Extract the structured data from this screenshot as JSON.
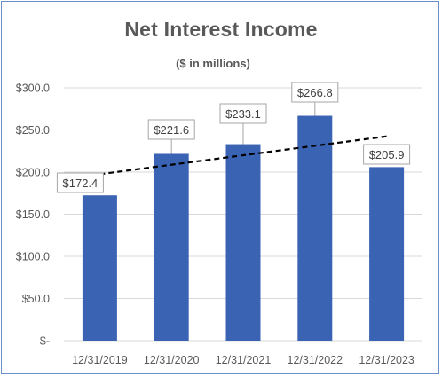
{
  "chart_data": {
    "type": "bar",
    "title": "Net Interest Income",
    "subtitle": "($ in millions)",
    "xlabel": "",
    "ylabel": "",
    "categories": [
      "12/31/2019",
      "12/31/2020",
      "12/31/2021",
      "12/31/2022",
      "12/31/2023"
    ],
    "values": [
      172.4,
      221.6,
      233.1,
      266.8,
      205.9
    ],
    "data_labels": [
      "$172.4",
      "$221.6",
      "$233.1",
      "$266.8",
      "$205.9"
    ],
    "y_ticks": [
      0,
      50,
      100,
      150,
      200,
      250,
      300
    ],
    "y_tick_labels": [
      "$-",
      "$50.0",
      "$100.0",
      "$150.0",
      "$200.0",
      "$250.0",
      "$300.0"
    ],
    "ylim": [
      0,
      300
    ],
    "grid": true,
    "trendline": "linear",
    "colors": {
      "bar": "#3a63b3",
      "grid": "#d9d9d9",
      "trendline": "#000000",
      "label_box_border": "#a6a6a6",
      "frame": "#6b8fc9"
    }
  }
}
